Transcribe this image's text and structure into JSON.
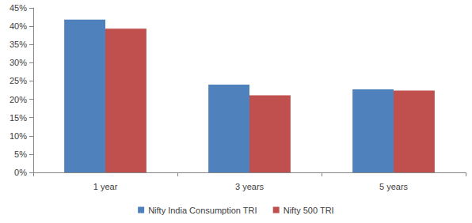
{
  "chart_data": {
    "type": "bar",
    "categories": [
      "1 year",
      "3 years",
      "5 years"
    ],
    "series": [
      {
        "name": "Nifty India Consumption TRI",
        "color": "#4f81bd",
        "values": [
          41.8,
          24.0,
          22.7
        ]
      },
      {
        "name": "Nifty 500 TRI",
        "color": "#c0504d",
        "values": [
          39.3,
          21.1,
          22.4
        ]
      }
    ],
    "ylim": [
      0,
      45
    ],
    "yticks": [
      {
        "value": 0,
        "label": "0%"
      },
      {
        "value": 5,
        "label": "5%"
      },
      {
        "value": 10,
        "label": "10%"
      },
      {
        "value": 15,
        "label": "15%"
      },
      {
        "value": 20,
        "label": "20%"
      },
      {
        "value": 25,
        "label": "25%"
      },
      {
        "value": 30,
        "label": "30%"
      },
      {
        "value": 35,
        "label": "35%"
      },
      {
        "value": 40,
        "label": "40%"
      },
      {
        "value": 45,
        "label": "45%"
      }
    ],
    "grid": false,
    "legend": "bottom"
  }
}
